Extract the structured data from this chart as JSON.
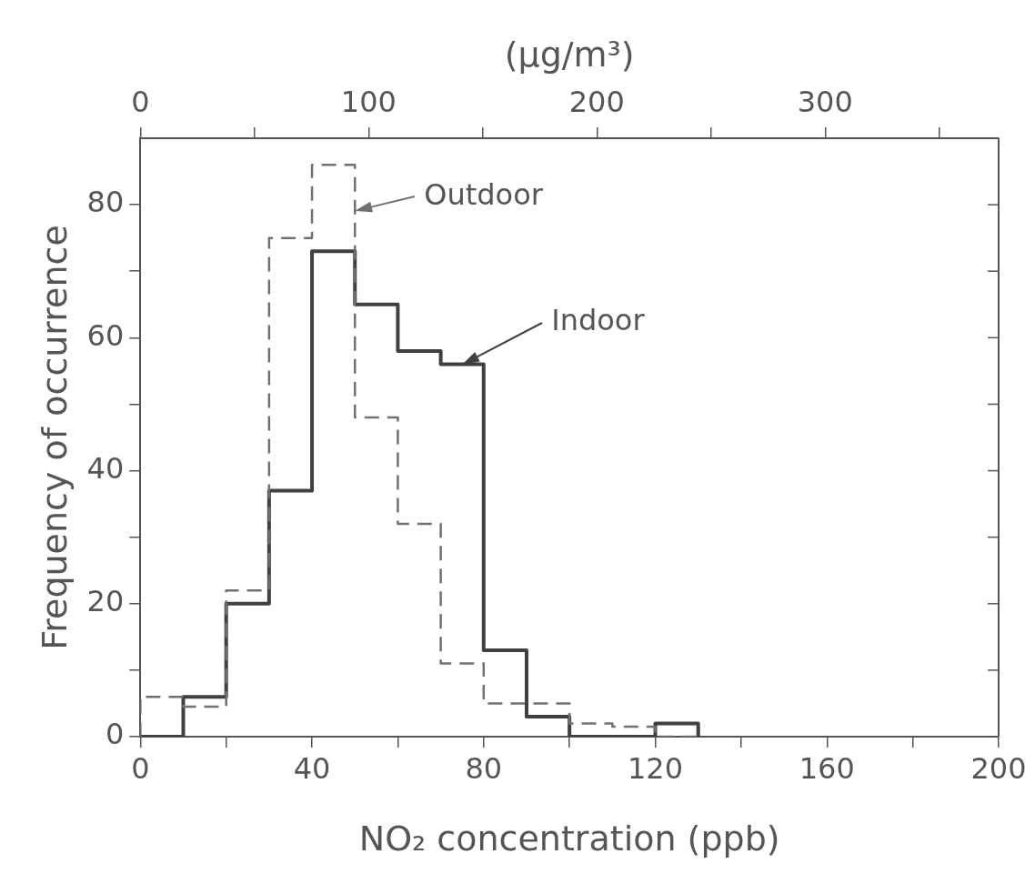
{
  "chart_data": {
    "type": "histogram",
    "xlabel": "NO₂ concentration (ppb)",
    "ylabel": "Frequency of occurrence",
    "x2label": "(μg/m³)",
    "bins": [
      0,
      10,
      20,
      30,
      40,
      50,
      60,
      70,
      80,
      90,
      100,
      110,
      120,
      130
    ],
    "series": [
      {
        "name": "Outdoor",
        "color": "#707070",
        "line_style": "dashed",
        "values": [
          6,
          4.5,
          22,
          75,
          86,
          48,
          32,
          11,
          5,
          5,
          2,
          1.5,
          0
        ]
      },
      {
        "name": "Indoor",
        "color": "#404040",
        "line_style": "solid",
        "values": [
          0,
          6,
          20,
          37,
          73,
          65,
          58,
          56,
          13,
          3,
          0,
          0,
          2
        ]
      }
    ],
    "xlim": [
      0,
      200
    ],
    "xticks": [
      0,
      {
        "value": 20,
        "label": null
      },
      40,
      {
        "value": 60,
        "label": null
      },
      80,
      {
        "value": 100,
        "label": null
      },
      120,
      {
        "value": 140,
        "label": null
      },
      160,
      {
        "value": 180,
        "label": null
      },
      200
    ],
    "x2lim": [
      0,
      376
    ],
    "x2ticks": [
      0,
      {
        "value": 50,
        "label": null
      },
      100,
      {
        "value": 150,
        "label": null
      },
      200,
      {
        "value": 250,
        "label": null
      },
      300,
      {
        "value": 350,
        "label": null
      }
    ],
    "ylim": [
      0,
      90
    ],
    "yticks": [
      0,
      {
        "value": 10,
        "label": null
      },
      20,
      {
        "value": 30,
        "label": null
      },
      40,
      {
        "value": 50,
        "label": null
      },
      60,
      {
        "value": 70,
        "label": null
      },
      80
    ],
    "legend": "top",
    "grid": false
  }
}
